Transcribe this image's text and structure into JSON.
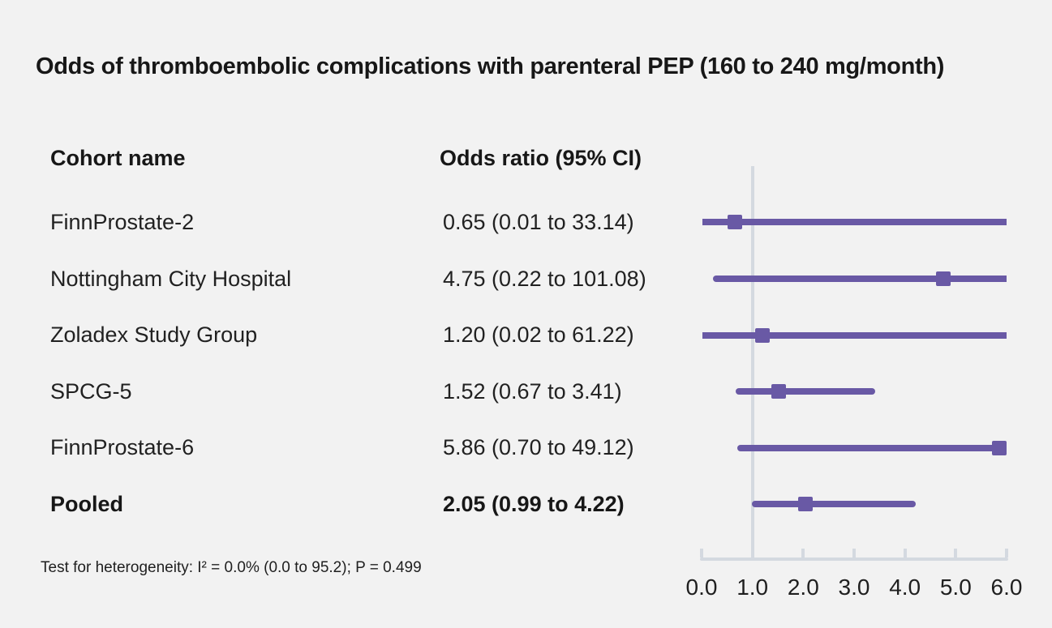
{
  "colors": {
    "background": "#f2f2f2",
    "accent_purple": "#6959a5",
    "axis_gray": "#d4d9e0",
    "text_dark": "#171717"
  },
  "chart_data": {
    "type": "scatter",
    "variant": "forest-plot",
    "title": "Odds of thromboembolic complications with parenteral PEP (160 to 240 mg/month)",
    "columns": {
      "cohort": "Cohort name",
      "odds": "Odds ratio (95% CI)"
    },
    "rows": [
      {
        "name": "FinnProstate-2",
        "label": "0.65 (0.01 to 33.14)",
        "or": 0.65,
        "ci_low": 0.01,
        "ci_high": 33.14,
        "bold": false
      },
      {
        "name": "Nottingham City Hospital",
        "label": "4.75 (0.22 to 101.08)",
        "or": 4.75,
        "ci_low": 0.22,
        "ci_high": 101.08,
        "bold": false
      },
      {
        "name": "Zoladex Study Group",
        "label": "1.20 (0.02 to 61.22)",
        "or": 1.2,
        "ci_low": 0.02,
        "ci_high": 61.22,
        "bold": false
      },
      {
        "name": "SPCG-5",
        "label": "1.52 (0.67 to 3.41)",
        "or": 1.52,
        "ci_low": 0.67,
        "ci_high": 3.41,
        "bold": false
      },
      {
        "name": "FinnProstate-6",
        "label": "5.86 (0.70 to 49.12)",
        "or": 5.86,
        "ci_low": 0.7,
        "ci_high": 49.12,
        "bold": false
      },
      {
        "name": "Pooled",
        "label": "2.05 (0.99 to 4.22)",
        "or": 2.05,
        "ci_low": 0.99,
        "ci_high": 4.22,
        "bold": true
      }
    ],
    "x_axis": {
      "min": 0,
      "max": 6,
      "tick_labels": [
        "0.0",
        "1.0",
        "2.0",
        "3.0",
        "4.0",
        "5.0",
        "6.0"
      ],
      "reference_line": 1.0,
      "grid": false
    },
    "footnote": "Test for heterogeneity: I² = 0.0% (0.0 to 95.2); P = 0.499"
  }
}
